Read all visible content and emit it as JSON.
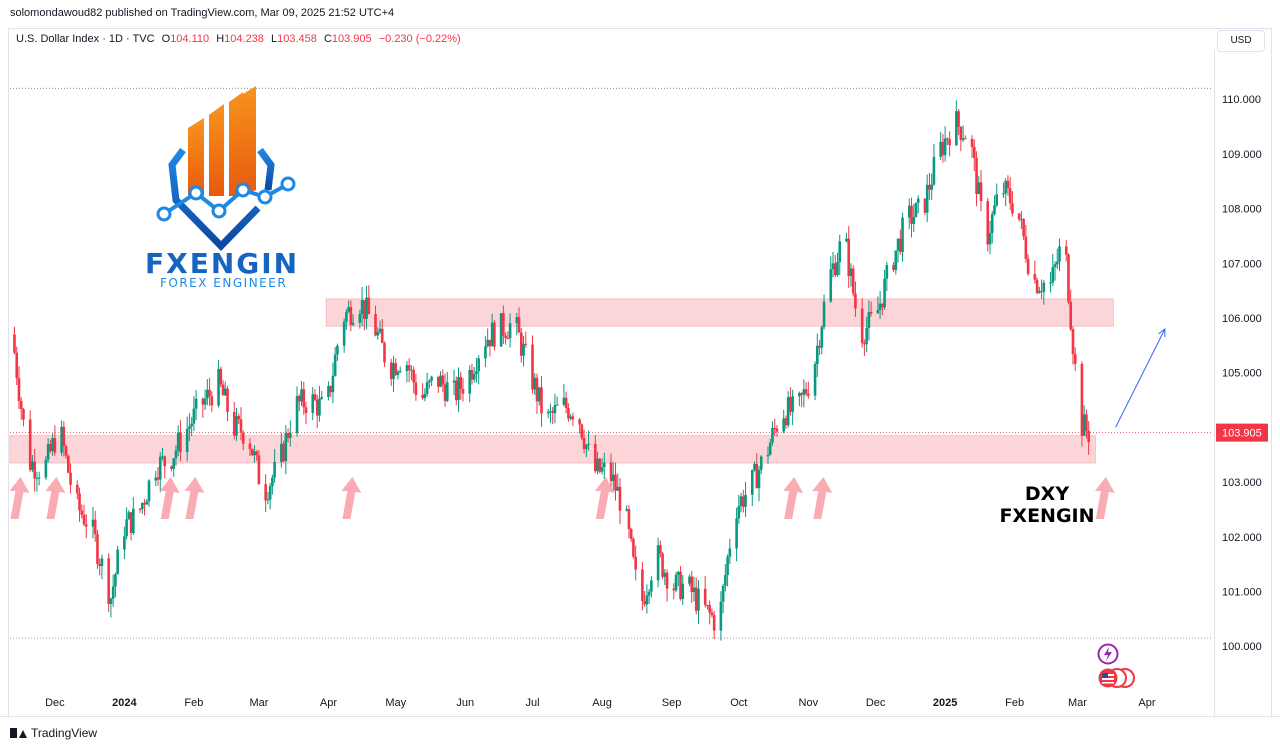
{
  "publisher": "solomondawoud82 published on TradingView.com, Mar 09, 2025 21:52 UTC+4",
  "legend": {
    "symbol": "U.S. Dollar Index · 1D · TVC",
    "open_label": "O",
    "open": "104.110",
    "high_label": "H",
    "high": "104.238",
    "low_label": "L",
    "low": "103.458",
    "close_label": "C",
    "close": "103.905",
    "change": "−0.230 (−0.22%)"
  },
  "currency": "USD",
  "brand": {
    "name": "FXENGIN",
    "tagline": "FOREX ENGINEER"
  },
  "annotation": {
    "line1": "DXY",
    "line2": "FXENGIN"
  },
  "footer": {
    "logo_text": "TradingView"
  },
  "colors": {
    "up": "#089981",
    "down": "#f23645",
    "zone": "#fcd5d9",
    "arrow": "#f8a3ab",
    "projection": "#2962ff"
  },
  "icons": [
    "lightning-icon",
    "flag-icon",
    "tradingview-logo-icon"
  ],
  "chart_data": {
    "type": "candlestick",
    "title": "U.S. Dollar Index · 1D · TVC",
    "ylim": [
      99.2,
      110.9
    ],
    "y_ticks": [
      100.0,
      101.0,
      102.0,
      103.0,
      104.0,
      105.0,
      106.0,
      107.0,
      108.0,
      109.0,
      110.0
    ],
    "y_tick_labels": [
      "100.000",
      "101.000",
      "102.000",
      "103.000",
      "104.000",
      "105.000",
      "106.000",
      "107.000",
      "108.000",
      "109.000",
      "110.000"
    ],
    "last_price": 103.905,
    "last_price_label": "103.905",
    "x_labels": [
      {
        "label": "Dec",
        "date": "2023-12-01"
      },
      {
        "label": "2024",
        "date": "2024-01-01"
      },
      {
        "label": "Feb",
        "date": "2024-02-01"
      },
      {
        "label": "Mar",
        "date": "2024-03-01"
      },
      {
        "label": "Apr",
        "date": "2024-04-01"
      },
      {
        "label": "May",
        "date": "2024-05-01"
      },
      {
        "label": "Jun",
        "date": "2024-06-01"
      },
      {
        "label": "Jul",
        "date": "2024-07-01"
      },
      {
        "label": "Aug",
        "date": "2024-08-01"
      },
      {
        "label": "Sep",
        "date": "2024-09-01"
      },
      {
        "label": "Oct",
        "date": "2024-10-01"
      },
      {
        "label": "Nov",
        "date": "2024-11-01"
      },
      {
        "label": "Dec",
        "date": "2024-12-01"
      },
      {
        "label": "2025",
        "date": "2025-01-01"
      },
      {
        "label": "Feb",
        "date": "2025-02-01"
      },
      {
        "label": "Mar",
        "date": "2025-03-01"
      },
      {
        "label": "Apr",
        "date": "2025-04-01"
      }
    ],
    "bold_x_labels": [
      "2024",
      "2025"
    ],
    "x_range": [
      "2023-11-11",
      "2025-04-30"
    ],
    "series": [
      {
        "date": "2023-11-13",
        "close": 105.7
      },
      {
        "date": "2023-11-20",
        "close": 103.4
      },
      {
        "date": "2023-11-27",
        "close": 103.2
      },
      {
        "date": "2023-12-04",
        "close": 104.0
      },
      {
        "date": "2023-12-11",
        "close": 102.6
      },
      {
        "date": "2023-12-18",
        "close": 102.2
      },
      {
        "date": "2023-12-27",
        "close": 100.9
      },
      {
        "date": "2024-01-02",
        "close": 102.2
      },
      {
        "date": "2024-01-08",
        "close": 102.4
      },
      {
        "date": "2024-01-16",
        "close": 103.3
      },
      {
        "date": "2024-01-22",
        "close": 103.4
      },
      {
        "date": "2024-01-29",
        "close": 103.9
      },
      {
        "date": "2024-02-05",
        "close": 104.4
      },
      {
        "date": "2024-02-13",
        "close": 104.8
      },
      {
        "date": "2024-02-20",
        "close": 104.0
      },
      {
        "date": "2024-02-26",
        "close": 103.9
      },
      {
        "date": "2024-03-04",
        "close": 102.8
      },
      {
        "date": "2024-03-11",
        "close": 103.3
      },
      {
        "date": "2024-03-18",
        "close": 104.4
      },
      {
        "date": "2024-03-25",
        "close": 104.5
      },
      {
        "date": "2024-04-01",
        "close": 104.3
      },
      {
        "date": "2024-04-08",
        "close": 106.0
      },
      {
        "date": "2024-04-16",
        "close": 106.3
      },
      {
        "date": "2024-04-22",
        "close": 105.9
      },
      {
        "date": "2024-04-29",
        "close": 105.1
      },
      {
        "date": "2024-05-06",
        "close": 105.3
      },
      {
        "date": "2024-05-13",
        "close": 104.5
      },
      {
        "date": "2024-05-20",
        "close": 104.9
      },
      {
        "date": "2024-05-28",
        "close": 104.6
      },
      {
        "date": "2024-06-03",
        "close": 104.9
      },
      {
        "date": "2024-06-10",
        "close": 105.6
      },
      {
        "date": "2024-06-17",
        "close": 105.8
      },
      {
        "date": "2024-06-24",
        "close": 105.9
      },
      {
        "date": "2024-07-01",
        "close": 105.0
      },
      {
        "date": "2024-07-08",
        "close": 104.1
      },
      {
        "date": "2024-07-15",
        "close": 104.4
      },
      {
        "date": "2024-07-22",
        "close": 104.3
      },
      {
        "date": "2024-07-29",
        "close": 103.2
      },
      {
        "date": "2024-08-05",
        "close": 103.2
      },
      {
        "date": "2024-08-12",
        "close": 102.5
      },
      {
        "date": "2024-08-19",
        "close": 100.7
      },
      {
        "date": "2024-08-26",
        "close": 101.7
      },
      {
        "date": "2024-09-03",
        "close": 101.1
      },
      {
        "date": "2024-09-09",
        "close": 101.1
      },
      {
        "date": "2024-09-16",
        "close": 100.7
      },
      {
        "date": "2024-09-23",
        "close": 100.4
      },
      {
        "date": "2024-09-30",
        "close": 102.5
      },
      {
        "date": "2024-10-07",
        "close": 102.9
      },
      {
        "date": "2024-10-14",
        "close": 103.5
      },
      {
        "date": "2024-10-21",
        "close": 104.3
      },
      {
        "date": "2024-10-28",
        "close": 104.3
      },
      {
        "date": "2024-11-04",
        "close": 105.0
      },
      {
        "date": "2024-11-11",
        "close": 106.7
      },
      {
        "date": "2024-11-18",
        "close": 107.5
      },
      {
        "date": "2024-11-25",
        "close": 105.7
      },
      {
        "date": "2024-12-02",
        "close": 106.0
      },
      {
        "date": "2024-12-09",
        "close": 107.0
      },
      {
        "date": "2024-12-16",
        "close": 107.8
      },
      {
        "date": "2024-12-23",
        "close": 108.0
      },
      {
        "date": "2024-12-30",
        "close": 109.0
      },
      {
        "date": "2025-01-06",
        "close": 109.6
      },
      {
        "date": "2025-01-13",
        "close": 109.3
      },
      {
        "date": "2025-01-20",
        "close": 107.4
      },
      {
        "date": "2025-01-27",
        "close": 108.4
      },
      {
        "date": "2025-02-03",
        "close": 108.0
      },
      {
        "date": "2025-02-10",
        "close": 106.7
      },
      {
        "date": "2025-02-18",
        "close": 106.6
      },
      {
        "date": "2025-02-24",
        "close": 107.5
      },
      {
        "date": "2025-03-03",
        "close": 104.1
      },
      {
        "date": "2025-03-07",
        "close": 103.9
      }
    ],
    "zones": [
      {
        "low": 105.85,
        "high": 106.35,
        "from": "2024-03-31",
        "to": "2025-03-17"
      },
      {
        "low": 103.35,
        "high": 103.85,
        "from": "2023-11-11",
        "to": "2025-03-09"
      }
    ],
    "horizontal_levels": [
      110.2,
      100.15
    ],
    "support_arrows_dates": [
      "2023-11-13",
      "2023-11-29",
      "2024-01-19",
      "2024-01-30",
      "2024-04-09",
      "2024-07-31",
      "2024-10-23",
      "2024-11-05",
      "2025-03-11"
    ],
    "projection": {
      "from": {
        "date": "2025-03-18",
        "value": 104.0
      },
      "to": {
        "date": "2025-04-09",
        "value": 105.8
      }
    },
    "grid": false
  }
}
